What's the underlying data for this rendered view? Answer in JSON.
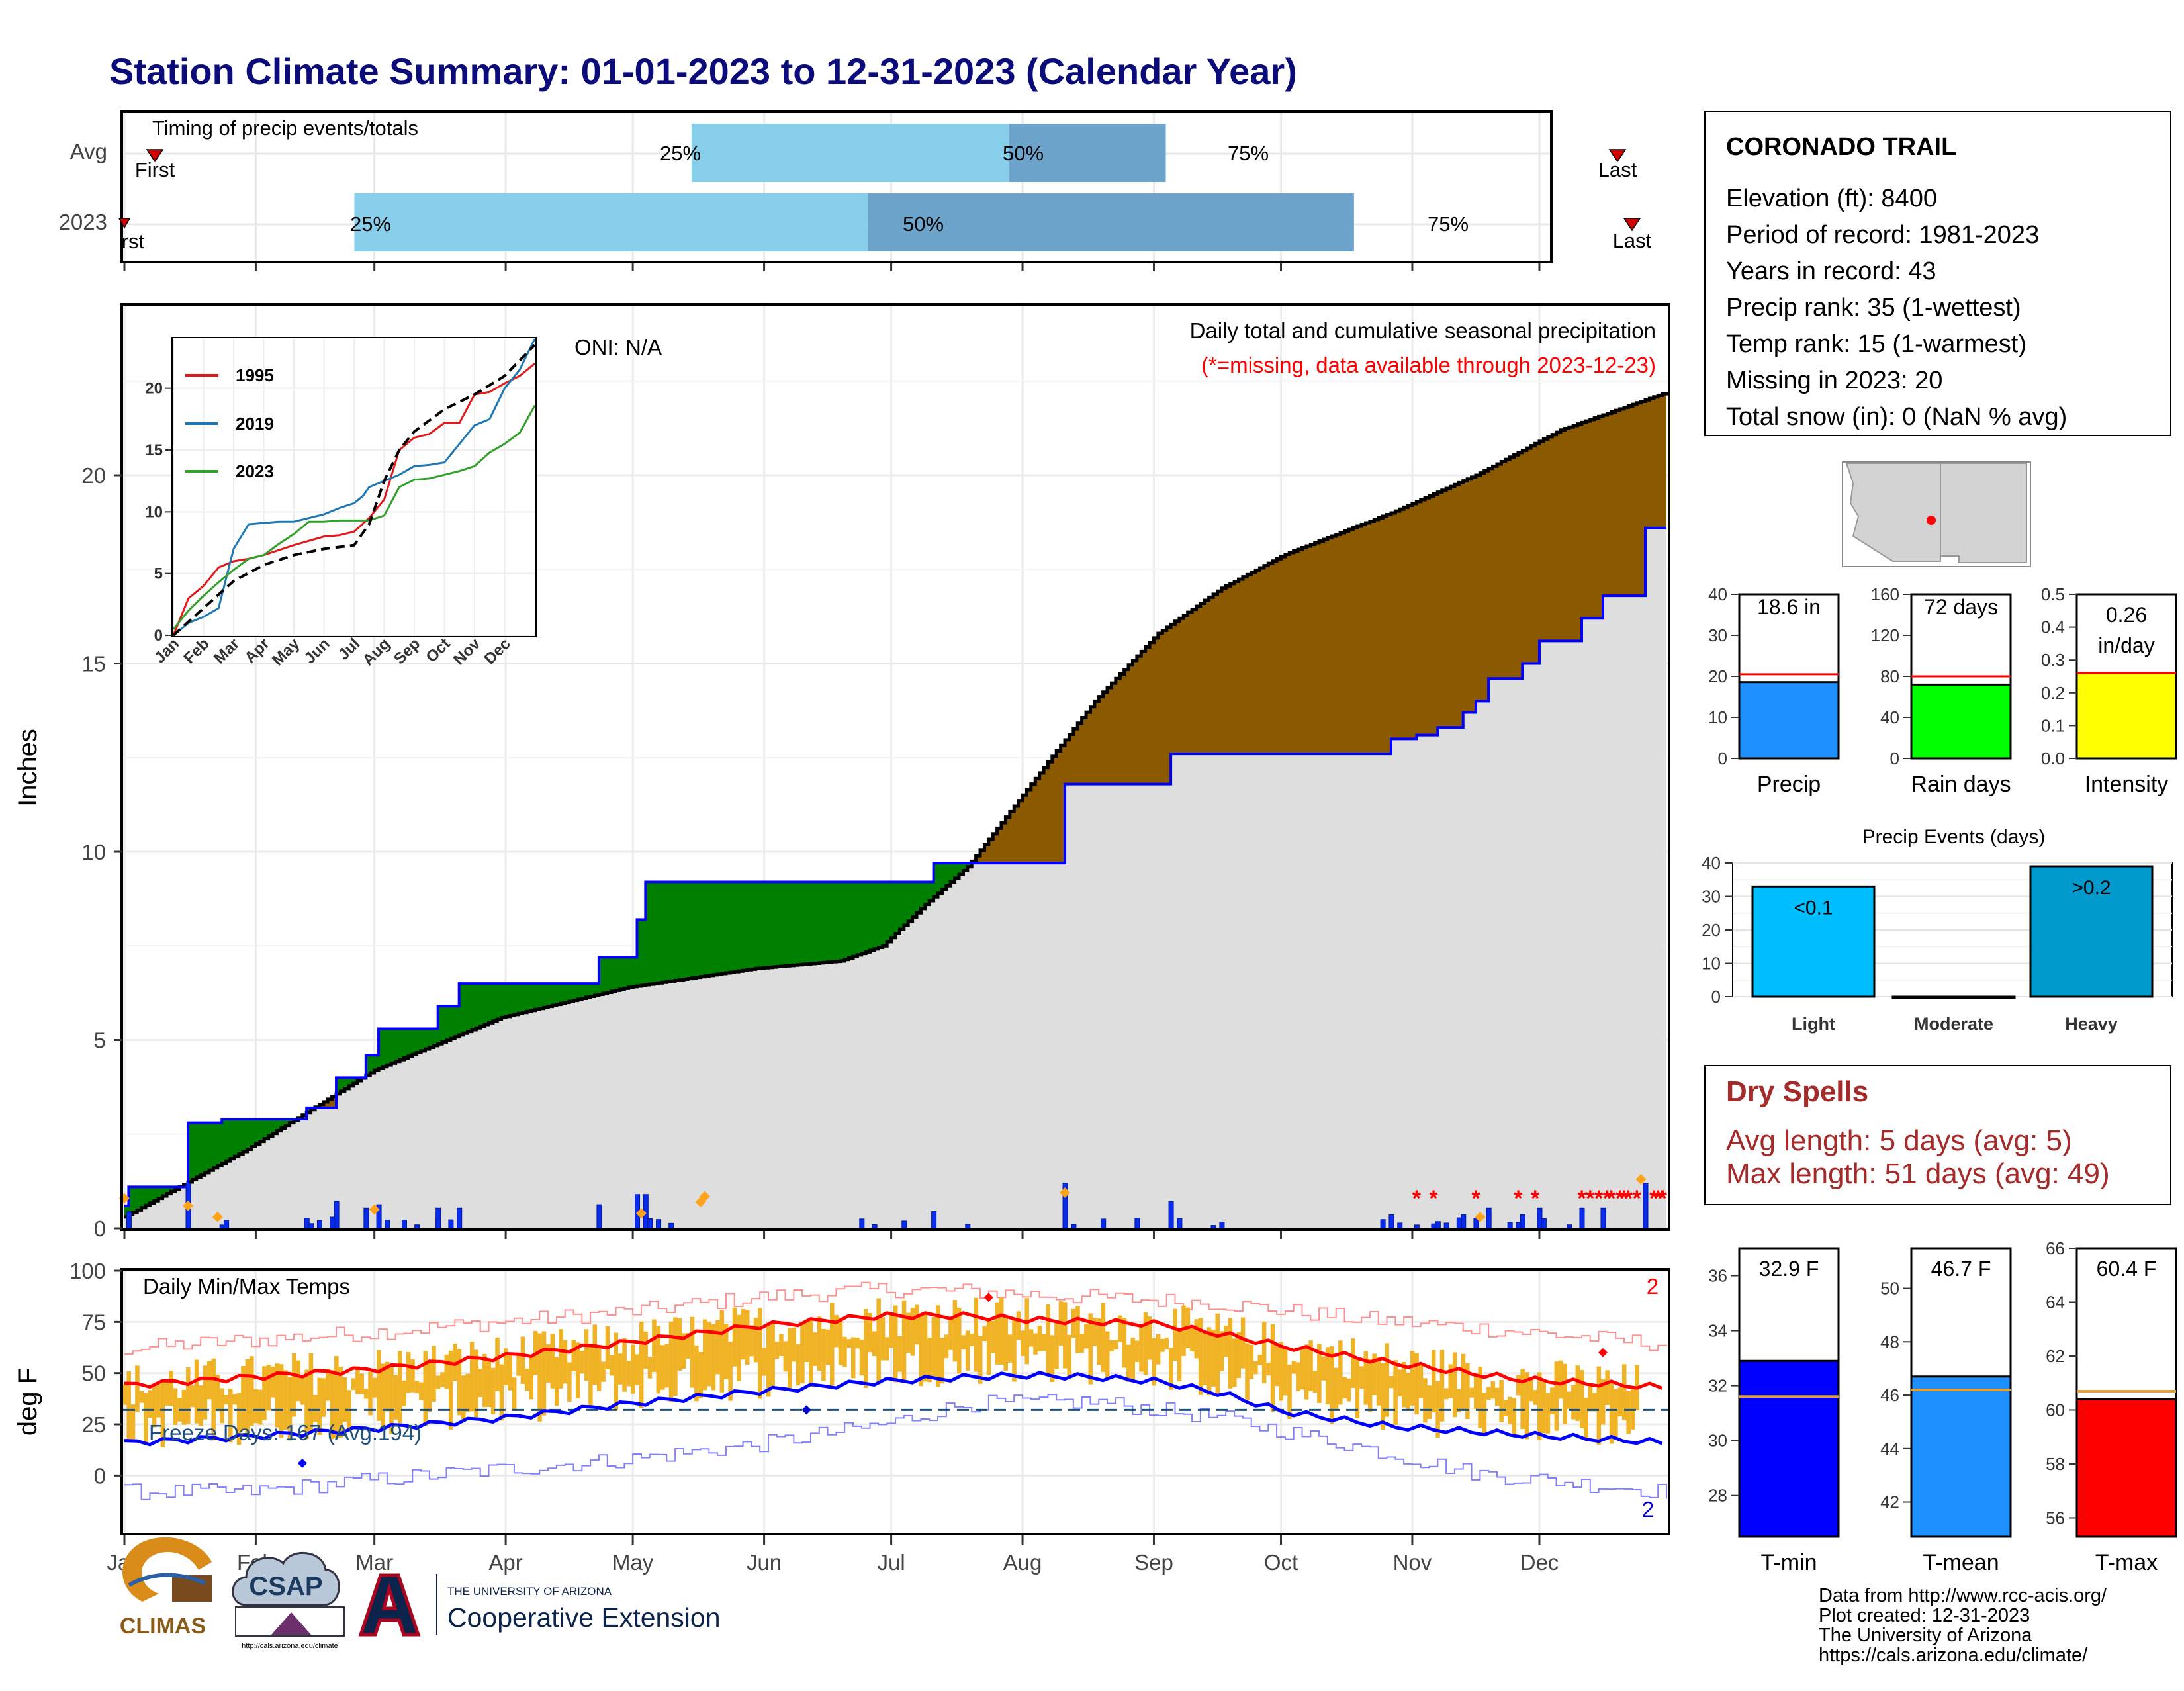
{
  "title": "Station Climate Summary: 01-01-2023 to 12-31-2023 (Calendar Year)",
  "colors": {
    "title": "#0b0b7a",
    "avg_light": "#87ceeb",
    "avg_dark": "#6ca4cb",
    "green_fill": "#008000",
    "brown_fill": "#8b5a00",
    "climo_fill": "#dedede",
    "precip_bar": "#0a2bf0",
    "marker_orange": "#ffa31a",
    "missing_red": "#ff0000",
    "tmax_line": "#ff0000",
    "tmin_line": "#0000ff",
    "temp_bar": "#f0b325",
    "freeze_line": "#1f4f7a",
    "dry_spell_red": "#a52a2a"
  },
  "timing_panel": {
    "label": "Timing of precip events/totals",
    "rows": [
      {
        "name": "Avg",
        "p25": "25%",
        "p50": "50%",
        "p75": "75%",
        "first": "First",
        "last": "Last"
      },
      {
        "name": "2023",
        "p25": "25%",
        "p50": "50%",
        "p75": "75%",
        "first": "First",
        "last": "Last"
      }
    ]
  },
  "precip_panel": {
    "ylabel": "Inches",
    "oni": "ONI: N/A",
    "title": "Daily total and cumulative seasonal precipitation",
    "note": "(*=missing, data available through 2023-12-23)",
    "missing_marker": "*"
  },
  "temp_panel": {
    "ylabel": "deg F",
    "label": "Daily Min/Max Temps",
    "freeze_text": "Freeze Days: 167 (Avg:194)",
    "top_count": "2",
    "bottom_count": "2"
  },
  "months": [
    "Jan",
    "Feb",
    "Mar",
    "Apr",
    "May",
    "Jun",
    "Jul",
    "Aug",
    "Sep",
    "Oct",
    "Nov",
    "Dec"
  ],
  "info_box": {
    "station": "CORONADO TRAIL",
    "lines": [
      "Elevation (ft): 8400",
      "Period of record: 1981-2023",
      "Years in record: 43",
      "Precip rank: 35 (1-wettest)",
      "Temp rank: 15 (1-warmest)",
      "Missing in 2023: 20",
      "Total snow (in): 0 (NaN % avg)"
    ]
  },
  "summary_bars": [
    {
      "label": "Precip",
      "value_text": "18.6 in",
      "ticks": [
        "40",
        "30",
        "20",
        "10",
        "0"
      ]
    },
    {
      "label": "Rain days",
      "value_text": "72 days",
      "ticks": [
        "160",
        "120",
        "80",
        "40",
        "0"
      ]
    },
    {
      "label": "Intensity",
      "value_text": "0.26",
      "value_text2": "in/day",
      "ticks": [
        "0.5",
        "0.4",
        "0.3",
        "0.2",
        "0.1",
        "0.0"
      ]
    }
  ],
  "events": {
    "title": "Precip Events (days)",
    "ticks": [
      "40",
      "30",
      "20",
      "10",
      "0"
    ],
    "bars": [
      {
        "label": "Light",
        "value_text": "<0.1"
      },
      {
        "label": "Moderate",
        "value_text": ""
      },
      {
        "label": "Heavy",
        "value_text": ">0.2"
      }
    ]
  },
  "dry_spells": {
    "title": "Dry Spells",
    "avg": "Avg length: 5 days (avg: 5)",
    "max": "Max length: 51 days (avg: 49)"
  },
  "temp_bars": [
    {
      "label": "T-min",
      "value_text": "32.9 F",
      "ticks": [
        "36",
        "34",
        "32",
        "30",
        "28"
      ]
    },
    {
      "label": "T-mean",
      "value_text": "46.7 F",
      "ticks": [
        "50",
        "48",
        "46",
        "44",
        "42"
      ]
    },
    {
      "label": "T-max",
      "value_text": "60.4 F",
      "ticks": [
        "66",
        "64",
        "62",
        "60",
        "58",
        "56"
      ]
    }
  ],
  "footer": {
    "lines": [
      "Data from http://www.rcc-acis.org/",
      "Plot created: 12-31-2023",
      "The University of Arizona",
      "https://cals.arizona.edu/climate/"
    ]
  },
  "logos": {
    "climas": "CLIMAS",
    "csap": "CSAP",
    "csap_url": "http://cals.arizona.edu/climate",
    "ua_small": "THE UNIVERSITY OF ARIZONA",
    "ua_big": "Cooperative Extension"
  },
  "chart_data": [
    {
      "type": "bar",
      "title": "Timing of precip events/totals",
      "categories": [
        "Avg",
        "2023"
      ],
      "x_unit": "day of year",
      "series": [
        {
          "name": "Avg",
          "first": 9,
          "p25": 146,
          "p50": 227,
          "p75": 267,
          "last": 355
        },
        {
          "name": "2023",
          "first": 1,
          "p25": 60,
          "p50": 191,
          "p75": 315,
          "last": 358
        }
      ],
      "xlim": [
        1,
        365
      ]
    },
    {
      "type": "area",
      "title": "Daily total and cumulative seasonal precipitation",
      "ylabel": "Inches",
      "ylim": [
        0,
        24.5
      ],
      "x_unit": "day of year",
      "xlim": [
        1,
        365
      ],
      "series": [
        {
          "name": "cumulative 2023",
          "x": [
            1,
            2,
            15,
            16,
            23,
            24,
            43,
            44,
            50,
            51,
            57,
            58,
            60,
            61,
            74,
            75,
            79,
            80,
            112,
            113,
            121,
            122,
            123,
            124,
            140,
            141,
            150,
            151,
            191,
            192,
            200,
            201,
            205,
            206,
            213,
            214,
            222,
            223,
            247,
            248,
            262,
            263,
            283,
            284,
            299,
            300,
            305,
            306,
            310,
            311,
            316,
            317,
            319,
            320,
            322,
            323,
            330,
            331,
            334,
            335,
            344,
            345,
            349,
            350,
            359,
            360,
            365
          ],
          "y": [
            0.6,
            1.1,
            1.1,
            2.8,
            2.8,
            2.9,
            2.9,
            3.2,
            3.2,
            4.0,
            4.0,
            4.6,
            4.6,
            5.3,
            5.3,
            5.9,
            5.9,
            6.5,
            6.5,
            7.2,
            7.2,
            8.2,
            8.2,
            9.2,
            9.2,
            9.2,
            9.2,
            9.2,
            9.2,
            9.7,
            9.7,
            9.7,
            9.7,
            9.7,
            9.7,
            9.7,
            9.7,
            11.8,
            11.8,
            12.6,
            12.6,
            12.6,
            12.6,
            12.6,
            12.6,
            13.0,
            13.0,
            13.1,
            13.1,
            13.3,
            13.3,
            13.7,
            13.7,
            14.0,
            14.0,
            14.6,
            14.6,
            15.0,
            15.0,
            15.6,
            15.6,
            16.2,
            16.2,
            16.8,
            16.8,
            18.6,
            18.6
          ]
        },
        {
          "name": "average cumulative",
          "x": [
            1,
            30,
            60,
            90,
            120,
            150,
            170,
            180,
            190,
            200,
            215,
            230,
            245,
            260,
            275,
            300,
            320,
            340,
            365
          ],
          "y": [
            0.3,
            2.1,
            4.2,
            5.6,
            6.4,
            6.9,
            7.1,
            7.5,
            8.6,
            9.6,
            11.8,
            14.0,
            15.8,
            17.0,
            17.9,
            19.0,
            20.0,
            21.2,
            22.2
          ]
        }
      ],
      "missing_marker": "*"
    },
    {
      "type": "line",
      "title": "",
      "xlabel": "",
      "ylabel": "",
      "x_ticks": [
        "Jan",
        "Feb",
        "Mar",
        "Apr",
        "May",
        "Jun",
        "Jul",
        "Aug",
        "Sep",
        "Oct",
        "Nov",
        "Dec"
      ],
      "ylim": [
        0,
        24
      ],
      "yticks": [
        0,
        5,
        10,
        15,
        20
      ],
      "x_unit": "month",
      "series": [
        {
          "name": "1995",
          "x": [
            0,
            0.5,
            1,
            1.5,
            2,
            2.5,
            3,
            4,
            5,
            5.5,
            6,
            6.5,
            7,
            7.5,
            8,
            8.5,
            9,
            9.5,
            10,
            10.5,
            11,
            11.5,
            12
          ],
          "y": [
            0,
            3,
            4,
            5.5,
            6,
            6.2,
            6.5,
            7.3,
            8.0,
            8.1,
            8.4,
            9.5,
            11.0,
            15.0,
            16.0,
            16.3,
            17.2,
            17.2,
            19.5,
            19.7,
            20.4,
            21.0,
            22.0
          ]
        },
        {
          "name": "2019",
          "x": [
            0,
            0.5,
            1,
            1.5,
            2,
            2.5,
            3,
            3.5,
            4,
            5,
            5.5,
            6,
            6.3,
            6.5,
            7,
            7.5,
            8,
            8.5,
            9,
            9.5,
            10,
            10.5,
            11,
            11.5,
            12
          ],
          "y": [
            0,
            1,
            1.5,
            2.2,
            7.0,
            9.0,
            9.1,
            9.2,
            9.2,
            9.8,
            10.3,
            10.7,
            11.3,
            12.0,
            12.5,
            13.0,
            13.7,
            13.8,
            14.0,
            15.5,
            17.0,
            17.5,
            20.0,
            21.5,
            24.0
          ]
        },
        {
          "name": "2023",
          "x": [
            0,
            0.5,
            1,
            1.5,
            2,
            2.5,
            3,
            3.5,
            4,
            4.5,
            5,
            5.5,
            6,
            6.5,
            7,
            7.5,
            8,
            8.5,
            9,
            9.5,
            10,
            10.5,
            11,
            11.5,
            12
          ],
          "y": [
            0.5,
            2.0,
            3.2,
            4.3,
            5.3,
            6.2,
            6.5,
            7.4,
            8.2,
            9.2,
            9.2,
            9.3,
            9.3,
            9.3,
            9.7,
            12.0,
            12.6,
            12.7,
            13.0,
            13.3,
            13.7,
            14.8,
            15.5,
            16.4,
            18.6
          ]
        },
        {
          "name": "average",
          "x": [
            0,
            1,
            2,
            3,
            4,
            5,
            6,
            6.5,
            7,
            7.5,
            8,
            9,
            10,
            11,
            12
          ],
          "y": [
            0,
            2.2,
            4.4,
            5.7,
            6.5,
            7.0,
            7.3,
            9.0,
            12.5,
            15.0,
            16.5,
            18.3,
            19.5,
            21.0,
            23.5
          ]
        }
      ]
    },
    {
      "type": "line",
      "title": "Daily Min/Max Temps",
      "ylabel": "deg F",
      "ylim": [
        -28,
        100
      ],
      "yticks": [
        0,
        25,
        50,
        75,
        100
      ],
      "x_unit": "day of year",
      "xlim": [
        1,
        365
      ],
      "series": [
        {
          "name": "avg max",
          "x": [
            1,
            30,
            60,
            90,
            120,
            150,
            180,
            200,
            215,
            230,
            245,
            260,
            275,
            300,
            330,
            365
          ],
          "y": [
            44,
            48,
            52,
            58,
            65,
            73,
            78,
            78,
            76,
            75,
            74,
            69,
            63,
            55,
            47,
            43
          ]
        },
        {
          "name": "avg min",
          "x": [
            1,
            30,
            60,
            90,
            120,
            150,
            180,
            200,
            215,
            230,
            245,
            260,
            275,
            300,
            330,
            365
          ],
          "y": [
            16,
            19,
            23,
            28,
            35,
            41,
            46,
            48,
            49,
            48,
            46,
            40,
            31,
            24,
            20,
            16
          ]
        },
        {
          "name": "record max",
          "x": [
            1,
            30,
            60,
            90,
            120,
            150,
            180,
            200,
            230,
            260,
            290,
            320,
            365
          ],
          "y": [
            62,
            66,
            70,
            75,
            80,
            87,
            91,
            90,
            87,
            84,
            77,
            72,
            64
          ]
        },
        {
          "name": "record min",
          "x": [
            1,
            30,
            60,
            90,
            120,
            150,
            180,
            200,
            230,
            260,
            290,
            320,
            365
          ],
          "y": [
            -8,
            -8,
            -2,
            3,
            8,
            15,
            25,
            35,
            36,
            28,
            15,
            1,
            -8
          ]
        }
      ],
      "freeze_days": 167,
      "freeze_days_avg": 194,
      "freeze_threshold": 32
    },
    {
      "type": "bar",
      "title": "",
      "categories": [
        "Precip",
        "Rain days",
        "Intensity"
      ],
      "series": [
        {
          "name": "2023",
          "values": [
            18.6,
            72,
            0.26
          ]
        },
        {
          "name": "average",
          "values": [
            20.5,
            80,
            0.26
          ]
        }
      ],
      "ylims": [
        [
          0,
          40
        ],
        [
          0,
          160
        ],
        [
          0,
          0.5
        ]
      ]
    },
    {
      "type": "bar",
      "title": "Precip Events (days)",
      "categories": [
        "Light",
        "Moderate",
        "Heavy"
      ],
      "values": [
        33,
        0,
        39
      ],
      "ylim": [
        0,
        40
      ]
    },
    {
      "type": "bar",
      "title": "",
      "categories": [
        "T-min",
        "T-mean",
        "T-max"
      ],
      "series": [
        {
          "name": "2023",
          "values": [
            32.9,
            46.7,
            60.4
          ]
        },
        {
          "name": "average",
          "values": [
            31.6,
            46.2,
            60.7
          ]
        }
      ],
      "ylims": [
        [
          26.5,
          37
        ],
        [
          40.7,
          51.5
        ],
        [
          55.3,
          66
        ]
      ]
    }
  ]
}
